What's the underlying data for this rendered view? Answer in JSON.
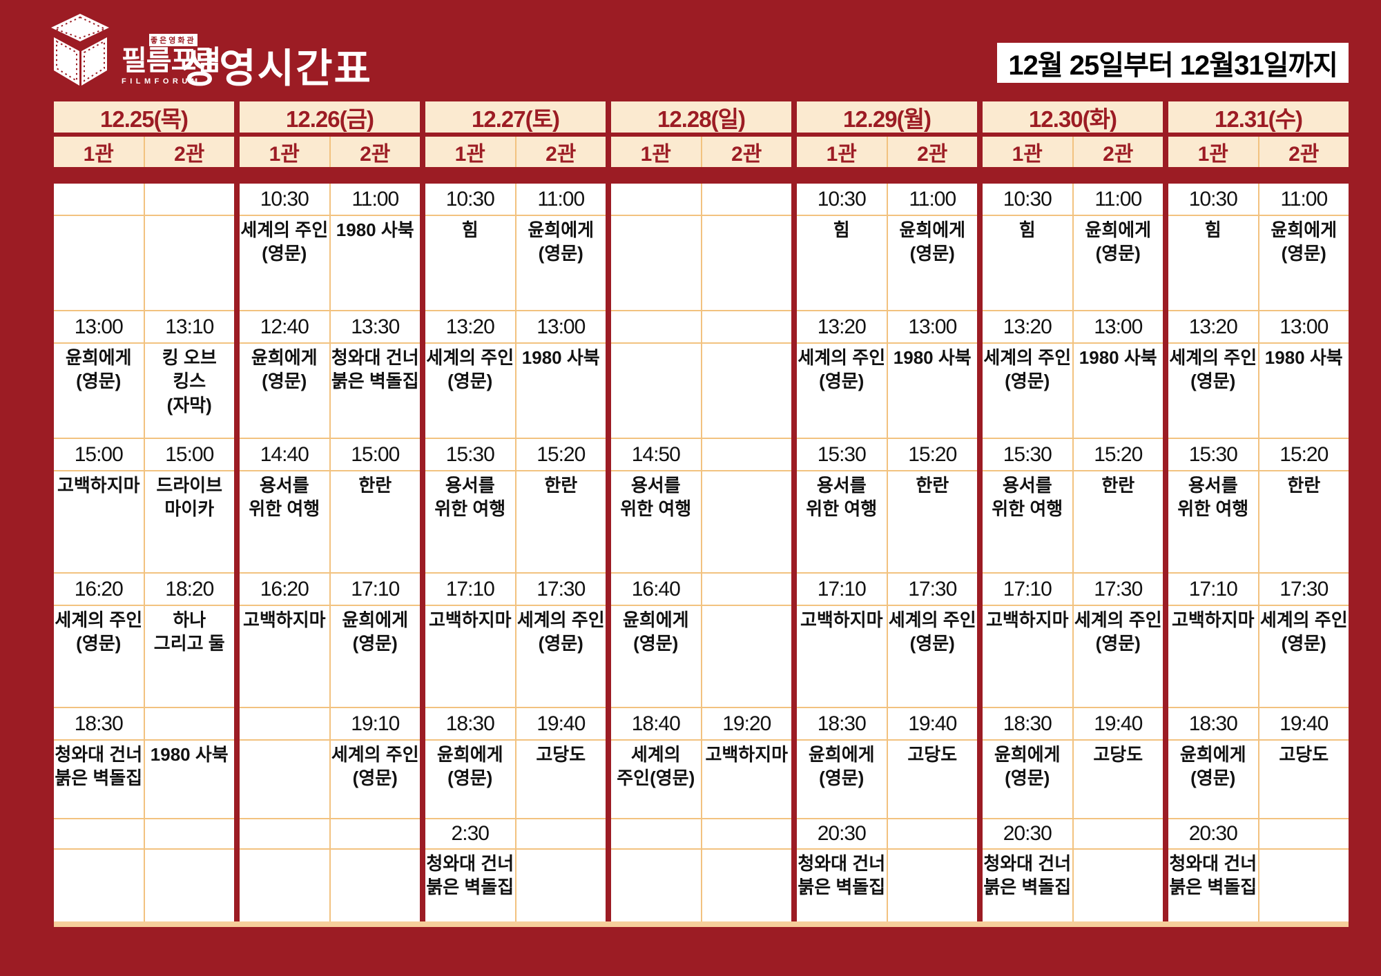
{
  "title": "상영시간표",
  "date_range": "12월 25일부터 12월31일까지",
  "logo": {
    "korean": "필름포럼",
    "english": "FILMFORUM",
    "tagline": "좋은영화관"
  },
  "colors": {
    "bg": "#9C1C24",
    "cream": "#FBEAD0",
    "line": "#F2C27F",
    "bar": "#F6CE9B",
    "ink": "#111111"
  },
  "schedule": {
    "screen_labels": [
      "1관",
      "2관"
    ],
    "days": [
      {
        "date": "12.25(목)",
        "screens": [
          {
            "slots": [
              {
                "time": "",
                "title": ""
              },
              {
                "time": "13:00",
                "title": "윤희에게\n(영문)"
              },
              {
                "time": "15:00",
                "title": "고백하지마"
              },
              {
                "time": "16:20",
                "title": "세계의 주인\n(영문)"
              },
              {
                "time": "18:30",
                "title": "청와대 건너\n붉은 벽돌집"
              },
              {
                "time": "",
                "title": ""
              }
            ]
          },
          {
            "slots": [
              {
                "time": "",
                "title": ""
              },
              {
                "time": "13:10",
                "title": "킹 오브\n킹스\n(자막)"
              },
              {
                "time": "15:00",
                "title": "드라이브\n마이카"
              },
              {
                "time": "18:20",
                "title": "하나\n그리고 둘"
              },
              {
                "time": "",
                "title": "1980 사북"
              },
              {
                "time": "",
                "title": ""
              }
            ]
          }
        ]
      },
      {
        "date": "12.26(금)",
        "screens": [
          {
            "slots": [
              {
                "time": "10:30",
                "title": "세계의 주인\n(영문)"
              },
              {
                "time": "12:40",
                "title": "윤희에게\n(영문)"
              },
              {
                "time": "14:40",
                "title": "용서를\n위한 여행"
              },
              {
                "time": "16:20",
                "title": "고백하지마"
              },
              {
                "time": "",
                "title": ""
              },
              {
                "time": "",
                "title": ""
              }
            ]
          },
          {
            "slots": [
              {
                "time": "11:00",
                "title": "1980 사북"
              },
              {
                "time": "13:30",
                "title": "청와대 건너\n붉은 벽돌집"
              },
              {
                "time": "15:00",
                "title": "한란"
              },
              {
                "time": "17:10",
                "title": "윤희에게\n(영문)"
              },
              {
                "time": "19:10",
                "title": "세계의 주인\n(영문)"
              },
              {
                "time": "",
                "title": ""
              }
            ]
          }
        ]
      },
      {
        "date": "12.27(토)",
        "screens": [
          {
            "slots": [
              {
                "time": "10:30",
                "title": "힘"
              },
              {
                "time": "13:20",
                "title": "세계의 주인\n(영문)"
              },
              {
                "time": "15:30",
                "title": "용서를\n위한 여행"
              },
              {
                "time": "17:10",
                "title": "고백하지마"
              },
              {
                "time": "18:30",
                "title": "윤희에게\n(영문)"
              },
              {
                "time": "2:30",
                "title": "청와대 건너\n붉은 벽돌집"
              }
            ]
          },
          {
            "slots": [
              {
                "time": "11:00",
                "title": "윤희에게\n(영문)"
              },
              {
                "time": "13:00",
                "title": "1980 사북"
              },
              {
                "time": "15:20",
                "title": "한란"
              },
              {
                "time": "17:30",
                "title": "세계의 주인\n(영문)"
              },
              {
                "time": "19:40",
                "title": "고당도"
              },
              {
                "time": "",
                "title": ""
              }
            ]
          }
        ]
      },
      {
        "date": "12.28(일)",
        "screens": [
          {
            "slots": [
              {
                "time": "",
                "title": ""
              },
              {
                "time": "",
                "title": ""
              },
              {
                "time": "14:50",
                "title": "용서를\n위한 여행"
              },
              {
                "time": "16:40",
                "title": "윤희에게\n(영문)"
              },
              {
                "time": "18:40",
                "title": "세계의\n주인(영문)"
              },
              {
                "time": "",
                "title": ""
              }
            ]
          },
          {
            "slots": [
              {
                "time": "",
                "title": ""
              },
              {
                "time": "",
                "title": ""
              },
              {
                "time": "",
                "title": ""
              },
              {
                "time": "",
                "title": ""
              },
              {
                "time": "19:20",
                "title": "고백하지마"
              },
              {
                "time": "",
                "title": ""
              }
            ]
          }
        ]
      },
      {
        "date": "12.29(월)",
        "screens": [
          {
            "slots": [
              {
                "time": "10:30",
                "title": "힘"
              },
              {
                "time": "13:20",
                "title": "세계의 주인\n(영문)"
              },
              {
                "time": "15:30",
                "title": "용서를\n위한 여행"
              },
              {
                "time": "17:10",
                "title": "고백하지마"
              },
              {
                "time": "18:30",
                "title": "윤희에게\n(영문)"
              },
              {
                "time": "20:30",
                "title": "청와대 건너\n붉은 벽돌집"
              }
            ]
          },
          {
            "slots": [
              {
                "time": "11:00",
                "title": "윤희에게\n(영문)"
              },
              {
                "time": "13:00",
                "title": "1980 사북"
              },
              {
                "time": "15:20",
                "title": "한란"
              },
              {
                "time": "17:30",
                "title": "세계의 주인\n(영문)"
              },
              {
                "time": "19:40",
                "title": "고당도"
              },
              {
                "time": "",
                "title": ""
              }
            ]
          }
        ]
      },
      {
        "date": "12.30(화)",
        "screens": [
          {
            "slots": [
              {
                "time": "10:30",
                "title": "힘"
              },
              {
                "time": "13:20",
                "title": "세계의 주인\n(영문)"
              },
              {
                "time": "15:30",
                "title": "용서를\n위한 여행"
              },
              {
                "time": "17:10",
                "title": "고백하지마"
              },
              {
                "time": "18:30",
                "title": "윤희에게\n(영문)"
              },
              {
                "time": "20:30",
                "title": "청와대 건너\n붉은 벽돌집"
              }
            ]
          },
          {
            "slots": [
              {
                "time": "11:00",
                "title": "윤희에게\n(영문)"
              },
              {
                "time": "13:00",
                "title": "1980 사북"
              },
              {
                "time": "15:20",
                "title": "한란"
              },
              {
                "time": "17:30",
                "title": "세계의 주인\n(영문)"
              },
              {
                "time": "19:40",
                "title": "고당도"
              },
              {
                "time": "",
                "title": ""
              }
            ]
          }
        ]
      },
      {
        "date": "12.31(수)",
        "screens": [
          {
            "slots": [
              {
                "time": "10:30",
                "title": "힘"
              },
              {
                "time": "13:20",
                "title": "세계의 주인\n(영문)"
              },
              {
                "time": "15:30",
                "title": "용서를\n위한 여행"
              },
              {
                "time": "17:10",
                "title": "고백하지마"
              },
              {
                "time": "18:30",
                "title": "윤희에게\n(영문)"
              },
              {
                "time": "20:30",
                "title": "청와대 건너\n붉은 벽돌집"
              }
            ]
          },
          {
            "slots": [
              {
                "time": "11:00",
                "title": "윤희에게\n(영문)"
              },
              {
                "time": "13:00",
                "title": "1980 사북"
              },
              {
                "time": "15:20",
                "title": "한란"
              },
              {
                "time": "17:30",
                "title": "세계의 주인\n(영문)"
              },
              {
                "time": "19:40",
                "title": "고당도"
              },
              {
                "time": "",
                "title": ""
              }
            ]
          }
        ]
      }
    ]
  }
}
